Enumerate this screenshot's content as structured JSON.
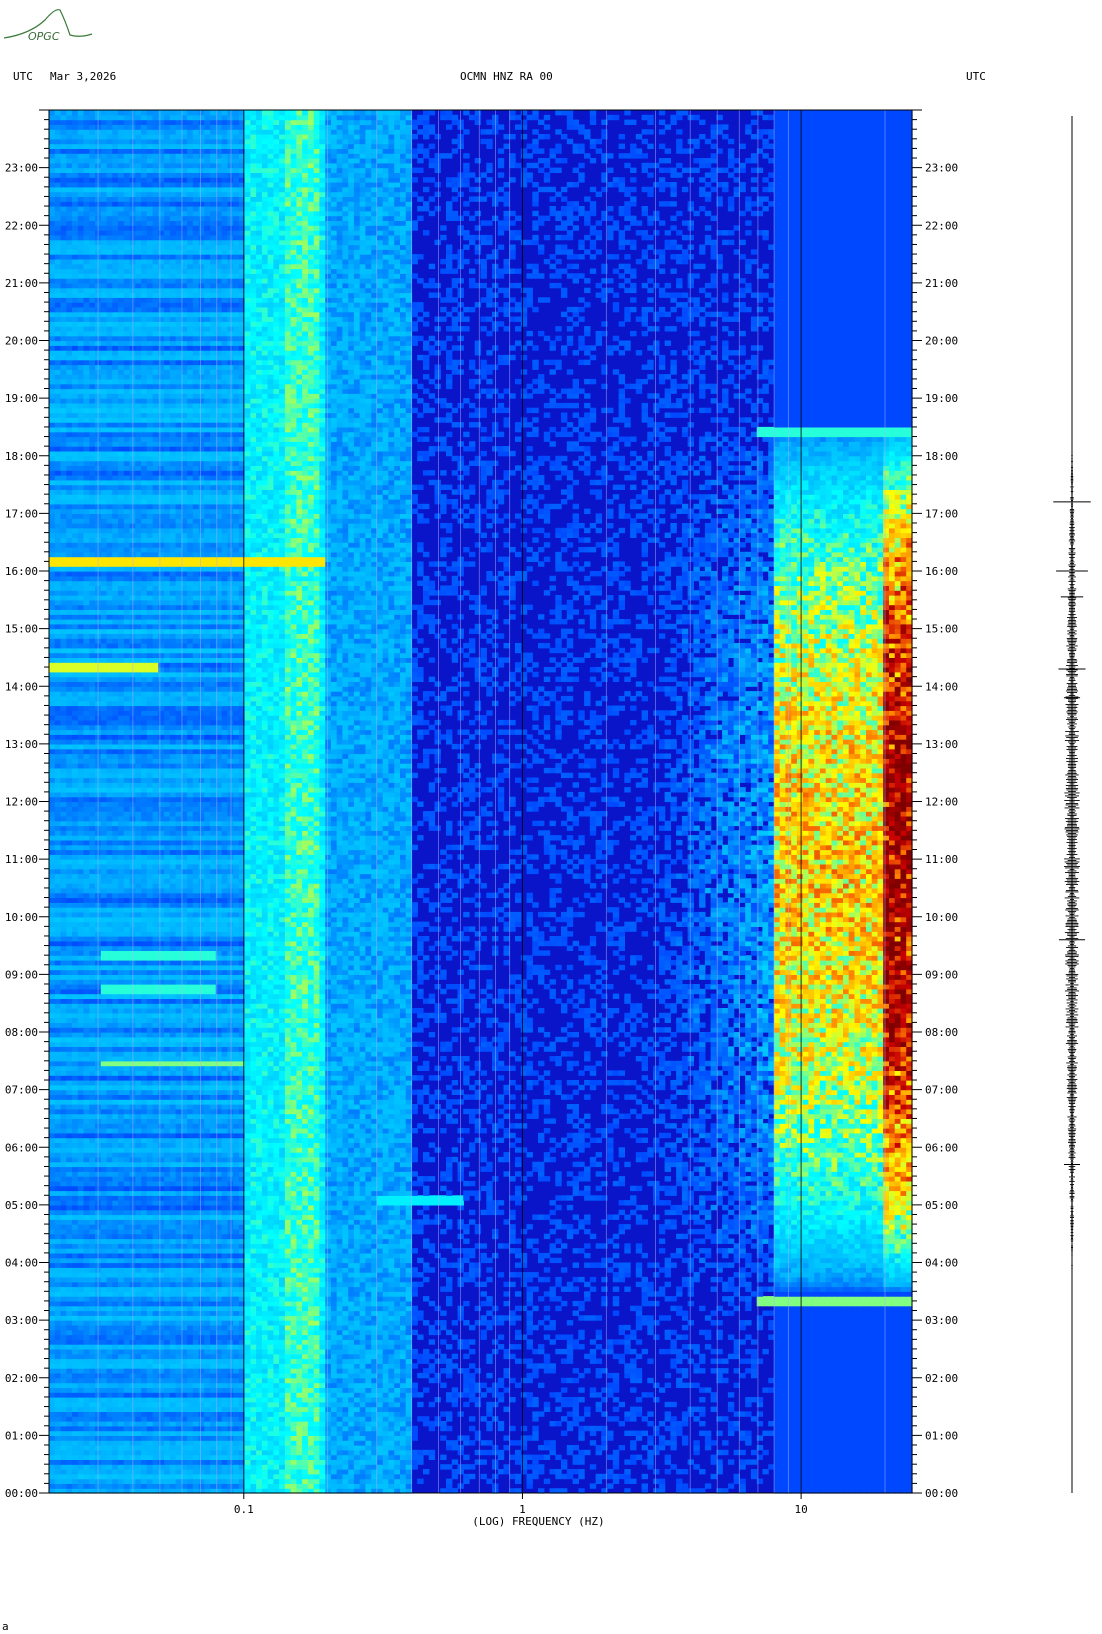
{
  "logo_text": "OPGC",
  "header": {
    "left": "UTC",
    "date": "Mar 3,2026",
    "center": "OCMN HNZ RA 00",
    "right": "UTC"
  },
  "chart_data": {
    "type": "heatmap",
    "title": "OCMN HNZ RA 00",
    "subtitle": "Mar 3,2026",
    "xlabel": "(LOG) FREQUENCY (HZ)",
    "ylabel": "UTC",
    "x_scale": "log",
    "xlim": [
      0.02,
      25
    ],
    "x_ticks": [
      {
        "value": 0.1,
        "label": "0.1"
      },
      {
        "value": 1,
        "label": "1"
      },
      {
        "value": 10,
        "label": "10"
      }
    ],
    "y_unit": "hour",
    "ylim": [
      0,
      24
    ],
    "y_ticks": [
      {
        "value": 0,
        "label": "00:00"
      },
      {
        "value": 1,
        "label": "01:00"
      },
      {
        "value": 2,
        "label": "02:00"
      },
      {
        "value": 3,
        "label": "03:00"
      },
      {
        "value": 4,
        "label": "04:00"
      },
      {
        "value": 5,
        "label": "05:00"
      },
      {
        "value": 6,
        "label": "06:00"
      },
      {
        "value": 7,
        "label": "07:00"
      },
      {
        "value": 8,
        "label": "08:00"
      },
      {
        "value": 9,
        "label": "09:00"
      },
      {
        "value": 10,
        "label": "10:00"
      },
      {
        "value": 11,
        "label": "11:00"
      },
      {
        "value": 12,
        "label": "12:00"
      },
      {
        "value": 13,
        "label": "13:00"
      },
      {
        "value": 14,
        "label": "14:00"
      },
      {
        "value": 15,
        "label": "15:00"
      },
      {
        "value": 16,
        "label": "16:00"
      },
      {
        "value": 17,
        "label": "17:00"
      },
      {
        "value": 18,
        "label": "18:00"
      },
      {
        "value": 19,
        "label": "19:00"
      },
      {
        "value": 20,
        "label": "20:00"
      },
      {
        "value": 21,
        "label": "21:00"
      },
      {
        "value": 22,
        "label": "22:00"
      },
      {
        "value": 23,
        "label": "23:00"
      }
    ],
    "colormap": [
      "#00008a",
      "#0000ff",
      "#00b4ff",
      "#00ffff",
      "#ffff00",
      "#ff8000",
      "#c80000",
      "#800000"
    ],
    "background_color": "#0a14c8",
    "microseism_band_hz": [
      0.1,
      0.2
    ],
    "energetic_band_hz": [
      8,
      25
    ],
    "bright_bands": [
      {
        "time": 16.15,
        "fmin": 0.02,
        "fmax": 0.2,
        "level": 0.6
      },
      {
        "time": 14.35,
        "fmin": 0.02,
        "fmax": 0.05,
        "level": 0.55
      },
      {
        "time": 7.45,
        "fmin": 0.03,
        "fmax": 0.1,
        "level": 0.5
      },
      {
        "time": 9.35,
        "fmin": 0.03,
        "fmax": 0.08,
        "level": 0.45
      },
      {
        "time": 8.75,
        "fmin": 0.03,
        "fmax": 0.08,
        "level": 0.45
      },
      {
        "time": 5.1,
        "fmin": 0.3,
        "fmax": 0.6,
        "level": 0.4
      },
      {
        "time": 3.35,
        "fmin": 7,
        "fmax": 25,
        "level": 0.5
      },
      {
        "time": 18.4,
        "fmin": 7,
        "fmax": 25,
        "level": 0.45
      }
    ],
    "seismic_activity_hours": [
      3.5,
      18.5
    ]
  }
}
